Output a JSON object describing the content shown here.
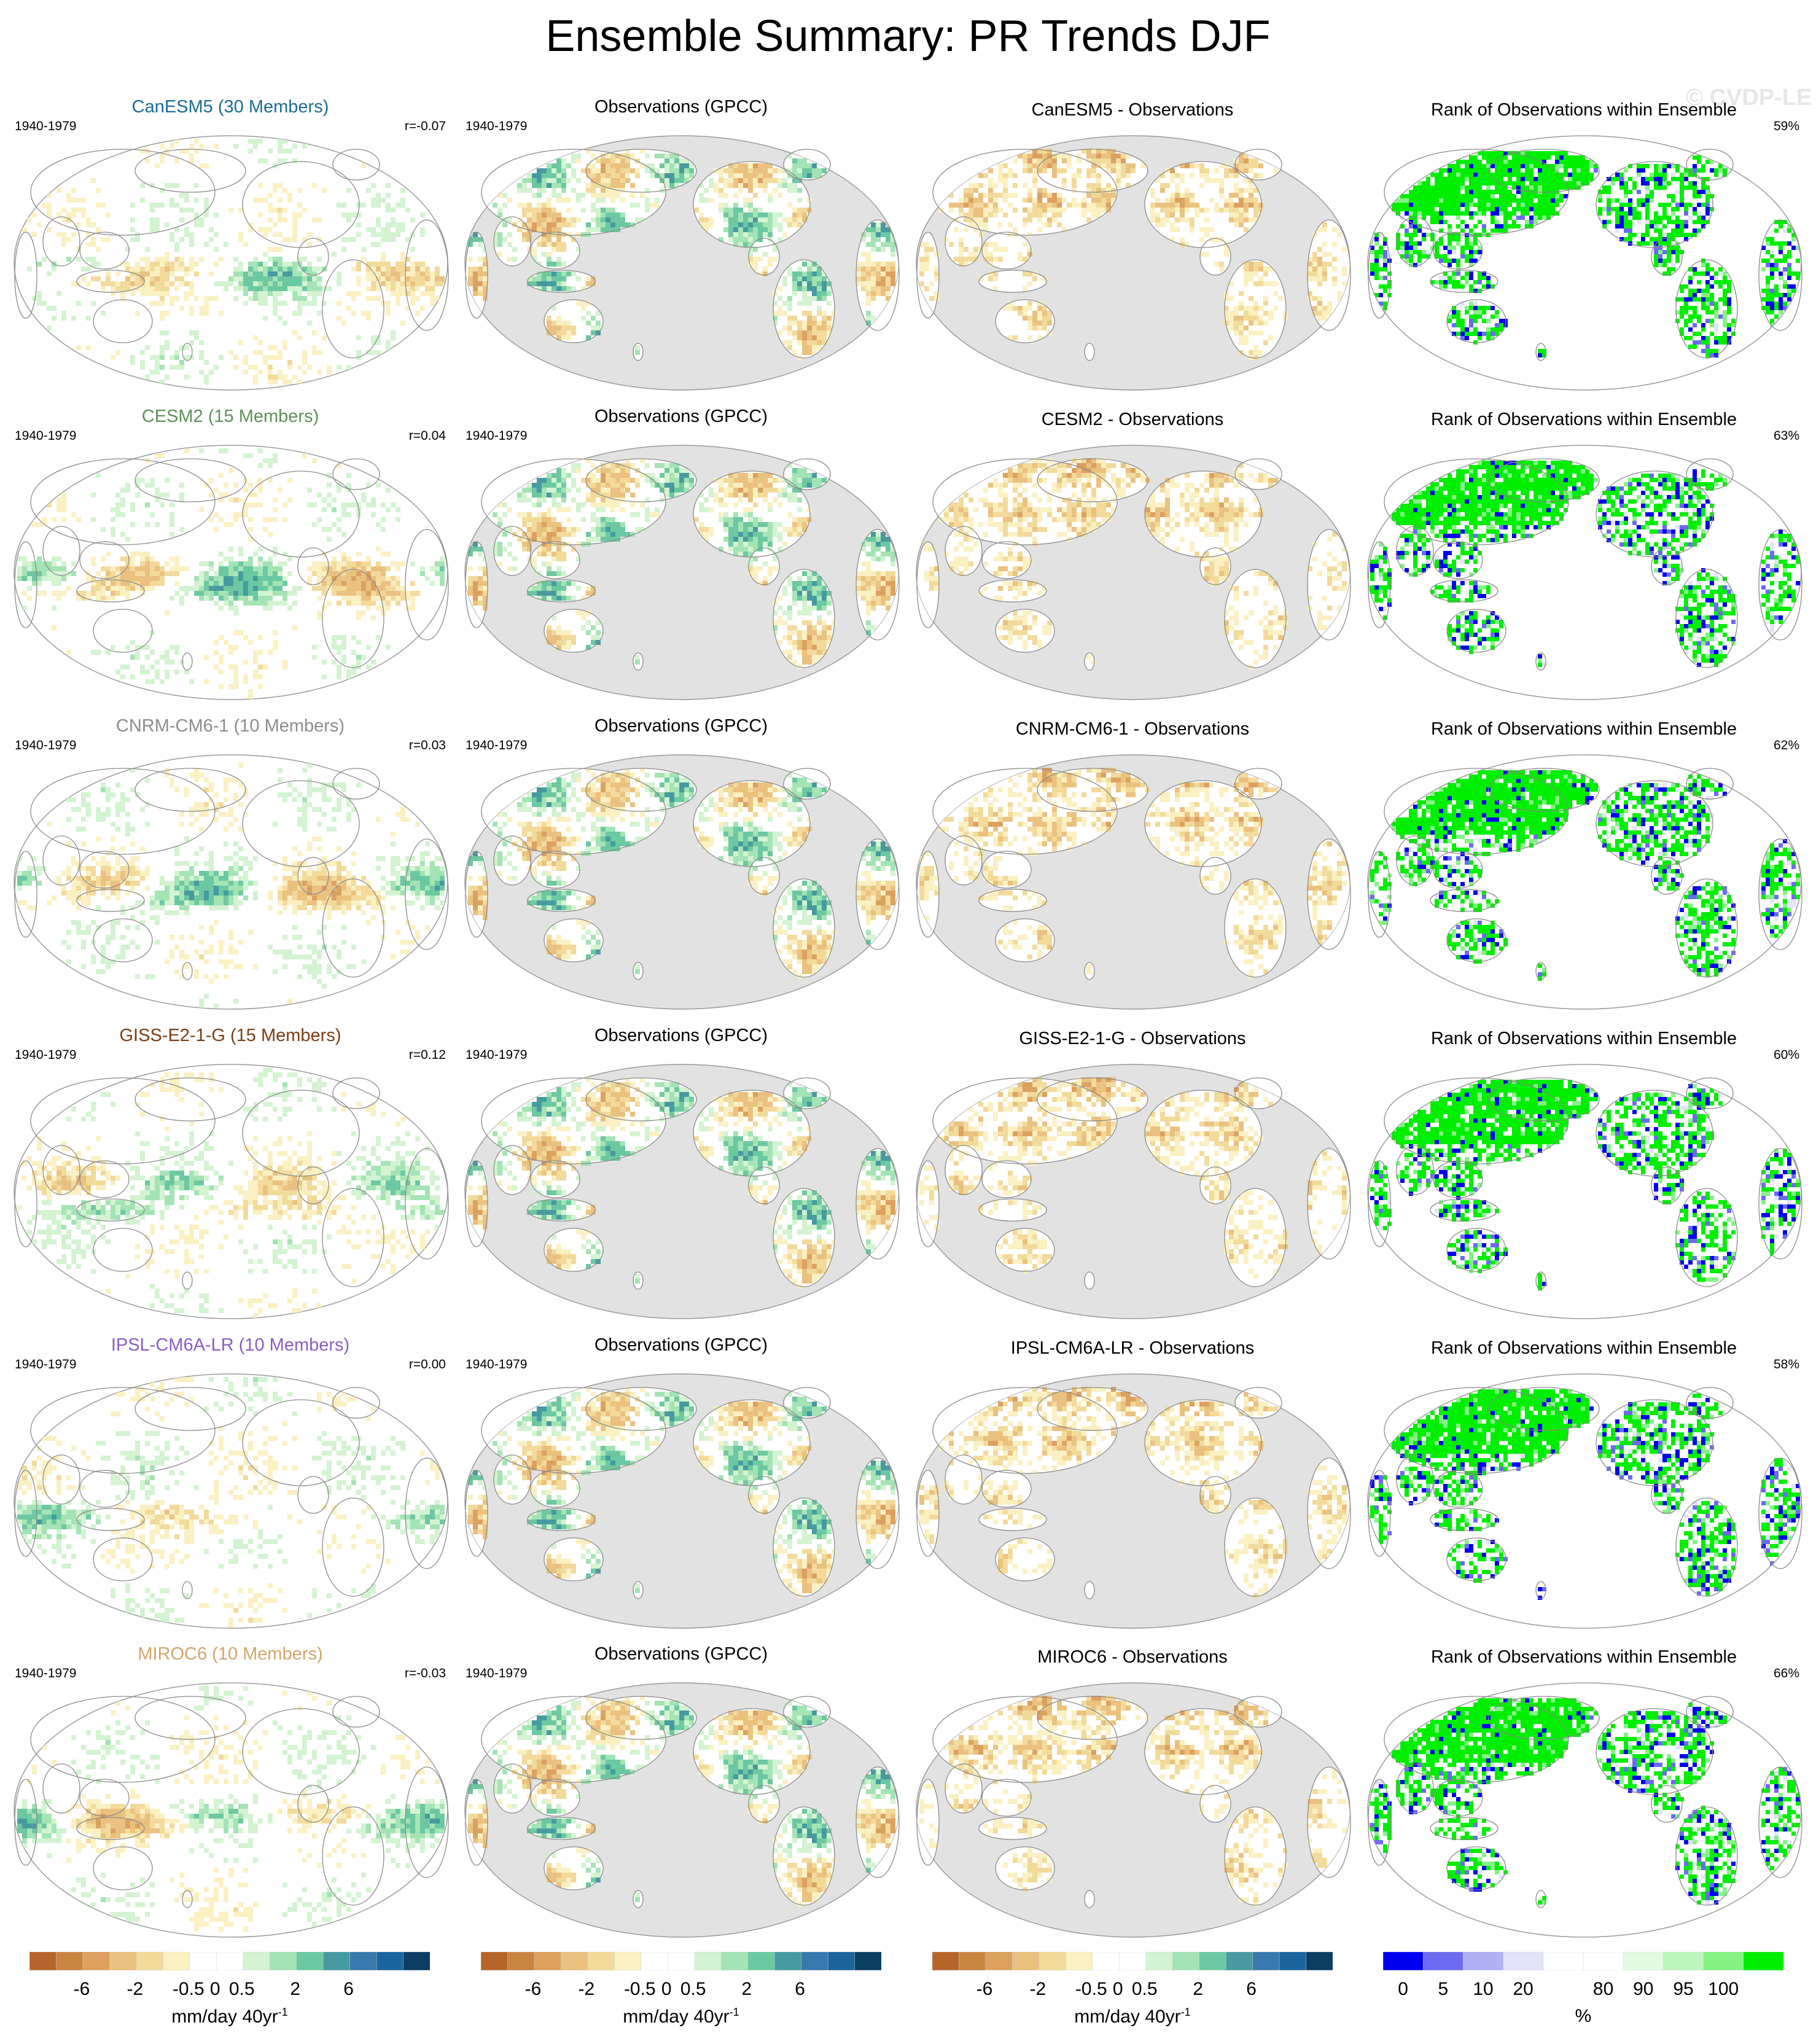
{
  "figure": {
    "title": "Ensemble Summary: PR Trends DJF",
    "watermark": "© CVDP-LE"
  },
  "colors": {
    "trend_scale": [
      "#b5652b",
      "#c98442",
      "#dca15f",
      "#eac17f",
      "#f2da9b",
      "#faf0c2",
      "#ffffff",
      "#ffffff",
      "#d3f3d1",
      "#a4e3b4",
      "#6cc8a0",
      "#479a9f",
      "#3979ad",
      "#1a64a0",
      "#0c3d63"
    ],
    "rank_scale": [
      "#0000ee",
      "#6b6bf2",
      "#b0b0f5",
      "#e3e3fa",
      "#ffffff",
      "#ffffff",
      "#e1fbe1",
      "#bdf6bd",
      "#86f286",
      "#00ee00"
    ],
    "ocean_gray": "#e2e2e2",
    "coast": "#8a8a8a"
  },
  "chart_data": {
    "type": "heatmap",
    "layout": "6 rows x 4 columns of global map panels",
    "rows": [
      {
        "model_title": "CanESM5 (30 Members)",
        "title_color": "#1c6c94",
        "period": "1940-1979",
        "pattern_corr": "r=-0.07",
        "obs_title": "Observations (GPCC)",
        "obs_period": "1940-1979",
        "diff_title": "CanESM5 - Observations",
        "rank_title": "Rank of Observations within Ensemble",
        "rank_pct": "59%",
        "variant": 0
      },
      {
        "model_title": "CESM2 (15 Members)",
        "title_color": "#5e8f5a",
        "period": "1940-1979",
        "pattern_corr": "r=0.04",
        "obs_title": "Observations (GPCC)",
        "obs_period": "1940-1979",
        "diff_title": "CESM2 - Observations",
        "rank_title": "Rank of Observations within Ensemble",
        "rank_pct": "63%",
        "variant": 1
      },
      {
        "model_title": "CNRM-CM6-1 (10 Members)",
        "title_color": "#8c8c8c",
        "period": "1940-1979",
        "pattern_corr": "r=0.03",
        "obs_title": "Observations (GPCC)",
        "obs_period": "1940-1979",
        "diff_title": "CNRM-CM6-1 - Observations",
        "rank_title": "Rank of Observations within Ensemble",
        "rank_pct": "62%",
        "variant": 2
      },
      {
        "model_title": "GISS-E2-1-G (15 Members)",
        "title_color": "#7a3e12",
        "period": "1940-1979",
        "pattern_corr": "r=0.12",
        "obs_title": "Observations (GPCC)",
        "obs_period": "1940-1979",
        "diff_title": "GISS-E2-1-G - Observations",
        "rank_title": "Rank of Observations within Ensemble",
        "rank_pct": "60%",
        "variant": 3
      },
      {
        "model_title": "IPSL-CM6A-LR (10 Members)",
        "title_color": "#8a5cc6",
        "period": "1940-1979",
        "pattern_corr": "r=0.00",
        "obs_title": "Observations (GPCC)",
        "obs_period": "1940-1979",
        "diff_title": "IPSL-CM6A-LR - Observations",
        "rank_title": "Rank of Observations within Ensemble",
        "rank_pct": "58%",
        "variant": 4
      },
      {
        "model_title": "MIROC6 (10 Members)",
        "title_color": "#d4a56a",
        "period": "1940-1979",
        "pattern_corr": "r=-0.03",
        "obs_title": "Observations (GPCC)",
        "obs_period": "1940-1979",
        "diff_title": "MIROC6 - Observations",
        "rank_title": "Rank of Observations within Ensemble",
        "rank_pct": "66%",
        "variant": 5
      }
    ],
    "colorbars": [
      {
        "kind": "trend",
        "tick_labels": [
          "-6",
          "-2",
          "-0.5",
          "0",
          "0.5",
          "2",
          "6"
        ],
        "unit_main": "mm/day 40yr",
        "unit_sup": "-1"
      },
      {
        "kind": "trend",
        "tick_labels": [
          "-6",
          "-2",
          "-0.5",
          "0",
          "0.5",
          "2",
          "6"
        ],
        "unit_main": "mm/day 40yr",
        "unit_sup": "-1"
      },
      {
        "kind": "trend",
        "tick_labels": [
          "-6",
          "-2",
          "-0.5",
          "0",
          "0.5",
          "2",
          "6"
        ],
        "unit_main": "mm/day 40yr",
        "unit_sup": "-1"
      },
      {
        "kind": "rank",
        "tick_labels": [
          "0",
          "5",
          "10",
          "20",
          "80",
          "90",
          "95",
          "100"
        ],
        "unit_main": "%",
        "unit_sup": ""
      }
    ]
  }
}
